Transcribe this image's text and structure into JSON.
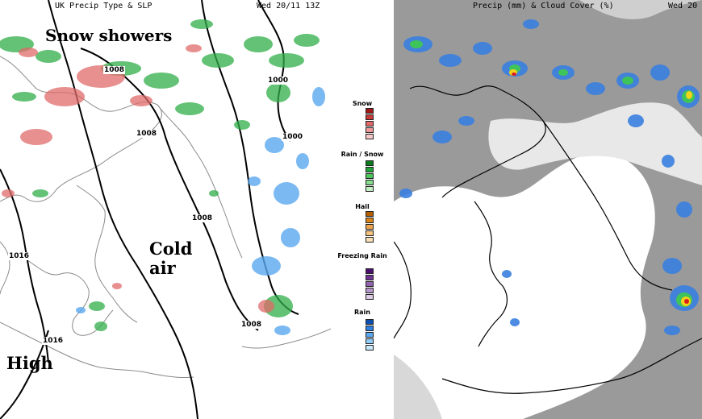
{
  "left_map": {
    "title": "UK Precip Type & SLP",
    "valid_time": "Wed 20/11 13Z",
    "annotations": {
      "snow": "Snow showers",
      "cold_line1": "Cold",
      "cold_line2": "air",
      "high": "High"
    },
    "isobars": [
      "1008",
      "1000",
      "1000",
      "1008",
      "1008",
      "1016",
      "1016",
      "1008"
    ]
  },
  "legend": {
    "categories": [
      {
        "label": "Snow",
        "colors": [
          "#a01818",
          "#c83a3a",
          "#e06a6a",
          "#f09a9a",
          "#f8c8c8"
        ]
      },
      {
        "label": "Rain / Snow",
        "colors": [
          "#0a7a1e",
          "#1fa33a",
          "#4cc45c",
          "#86dc8c",
          "#c4f0c4"
        ]
      },
      {
        "label": "Hail",
        "colors": [
          "#b35e00",
          "#d98218",
          "#eea24a",
          "#f6c47e",
          "#fbe0b8"
        ]
      },
      {
        "label": "Freezing Rain",
        "colors": [
          "#4b0f6e",
          "#6e3590",
          "#9264b0",
          "#b898cc",
          "#dccae6"
        ]
      },
      {
        "label": "Rain",
        "colors": [
          "#0b4fb0",
          "#2e7fe0",
          "#5aa8f0",
          "#90ccf8",
          "#c8e8fc"
        ]
      }
    ]
  },
  "right_map": {
    "title": "Precip (mm) & Cloud Cover (%)",
    "valid_time": "Wed 20"
  }
}
